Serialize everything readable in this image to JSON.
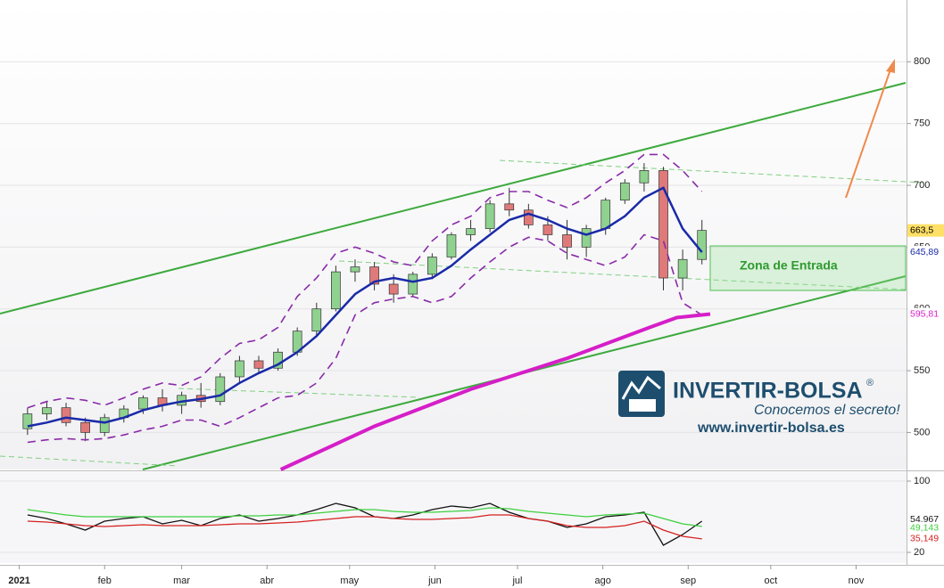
{
  "chart_data": [
    {
      "type": "candlestick",
      "x": [
        4,
        11,
        18,
        25,
        32,
        39,
        46,
        53,
        60,
        67,
        74,
        81,
        88,
        95,
        102,
        109,
        116,
        123,
        130,
        137,
        144,
        151,
        158,
        165,
        172,
        179,
        186,
        193,
        200,
        207,
        214,
        221,
        228,
        235,
        242,
        249
      ],
      "open": [
        503,
        515,
        520,
        508,
        500,
        512,
        519,
        528,
        522,
        530,
        525,
        545,
        558,
        552,
        565,
        582,
        600,
        630,
        634,
        620,
        612,
        628,
        642,
        660,
        665,
        685,
        680,
        668,
        660,
        650,
        665,
        688,
        702,
        712,
        625,
        640
      ],
      "high": [
        520,
        525,
        524,
        512,
        515,
        522,
        530,
        535,
        533,
        540,
        548,
        562,
        562,
        568,
        585,
        605,
        635,
        640,
        638,
        628,
        630,
        645,
        662,
        672,
        688,
        698,
        685,
        675,
        672,
        668,
        690,
        705,
        718,
        715,
        648,
        672
      ],
      "low": [
        498,
        510,
        505,
        493,
        497,
        508,
        515,
        517,
        515,
        520,
        522,
        540,
        548,
        550,
        562,
        578,
        598,
        622,
        615,
        605,
        610,
        624,
        640,
        655,
        662,
        675,
        665,
        655,
        640,
        642,
        660,
        685,
        695,
        615,
        615,
        636
      ],
      "close": [
        515,
        520,
        508,
        500,
        512,
        519,
        528,
        522,
        530,
        525,
        545,
        558,
        552,
        565,
        582,
        600,
        630,
        634,
        620,
        612,
        628,
        642,
        660,
        665,
        685,
        680,
        668,
        660,
        650,
        665,
        688,
        702,
        712,
        625,
        640,
        663.5
      ],
      "close_label": "663,5",
      "up_color": "#8fd18f",
      "down_color": "#e07a7a",
      "lines": [
        {
          "color": "#1a2aa8",
          "x": [
            4,
            11,
            18,
            25,
            32,
            39,
            46,
            53,
            60,
            67,
            74,
            81,
            88,
            95,
            102,
            109,
            116,
            123,
            130,
            137,
            144,
            151,
            158,
            165,
            172,
            179,
            186,
            193,
            200,
            207,
            214,
            221,
            228,
            235,
            242,
            249
          ],
          "values": [
            505,
            508,
            512,
            510,
            508,
            512,
            518,
            522,
            525,
            527,
            530,
            540,
            548,
            555,
            565,
            578,
            595,
            612,
            622,
            625,
            622,
            625,
            635,
            648,
            660,
            672,
            677,
            672,
            665,
            660,
            665,
            675,
            690,
            698,
            665,
            645.89
          ],
          "last_label": "645,89"
        },
        {
          "color": "#8a2aa8",
          "dashed": true,
          "x": [
            4,
            11,
            18,
            25,
            32,
            39,
            46,
            53,
            60,
            67,
            74,
            81,
            88,
            95,
            102,
            109,
            116,
            123,
            130,
            137,
            144,
            151,
            158,
            165,
            172,
            179,
            186,
            193,
            200,
            207,
            214,
            221,
            228,
            235,
            242,
            249
          ],
          "values": [
            520,
            525,
            528,
            526,
            522,
            528,
            535,
            540,
            538,
            545,
            560,
            572,
            575,
            585,
            610,
            625,
            645,
            650,
            645,
            638,
            635,
            655,
            668,
            675,
            690,
            695,
            695,
            688,
            682,
            690,
            702,
            712,
            725,
            725,
            712,
            695
          ]
        },
        {
          "color": "#8a2aa8",
          "dashed": true,
          "x": [
            4,
            11,
            18,
            25,
            32,
            39,
            46,
            53,
            60,
            67,
            74,
            81,
            88,
            95,
            102,
            109,
            116,
            123,
            130,
            137,
            144,
            151,
            158,
            165,
            172,
            179,
            186,
            193,
            200,
            207,
            214,
            221,
            228,
            235,
            242,
            249
          ],
          "values": [
            492,
            494,
            495,
            494,
            495,
            498,
            502,
            505,
            510,
            510,
            505,
            512,
            520,
            528,
            530,
            540,
            560,
            595,
            605,
            608,
            610,
            605,
            610,
            625,
            638,
            650,
            658,
            655,
            645,
            640,
            635,
            642,
            660,
            655,
            605,
            595
          ]
        },
        {
          "color": "#d61ec8",
          "width": 4,
          "x": [
            96,
            130,
            165,
            200,
            230,
            240,
            252
          ],
          "values": [
            470,
            505,
            535,
            560,
            585,
            593,
            595.81
          ],
          "last_label": "595,81"
        }
      ],
      "ylim": [
        470,
        850
      ],
      "yticks": [
        500,
        550,
        600,
        650,
        700,
        750,
        800
      ],
      "xlim": [
        -6,
        323
      ],
      "xticks": [
        {
          "value": 1,
          "label": "2021"
        },
        {
          "value": 32,
          "label": "feb"
        },
        {
          "value": 60,
          "label": "mar"
        },
        {
          "value": 91,
          "label": "abr"
        },
        {
          "value": 121,
          "label": "may"
        },
        {
          "value": 152,
          "label": "jun"
        },
        {
          "value": 182,
          "label": "jul"
        },
        {
          "value": 213,
          "label": "ago"
        },
        {
          "value": 244,
          "label": "sep"
        },
        {
          "value": 274,
          "label": "oct"
        },
        {
          "value": 305,
          "label": "nov"
        }
      ],
      "annotation": "Zona de Entrada",
      "watermark": {
        "brand": "INVERTIR-BOLSA",
        "mark": "®",
        "slogan": "Conocemos el secreto!",
        "url": "www.invertir-bolsa.es"
      }
    },
    {
      "type": "line",
      "x": [
        4,
        11,
        18,
        25,
        32,
        39,
        46,
        53,
        60,
        67,
        74,
        81,
        88,
        95,
        102,
        109,
        116,
        123,
        130,
        137,
        144,
        151,
        158,
        165,
        172,
        179,
        186,
        193,
        200,
        207,
        214,
        221,
        228,
        235,
        242,
        249
      ],
      "series": [
        {
          "color": "#111111",
          "values": [
            62,
            58,
            52,
            45,
            55,
            58,
            60,
            52,
            56,
            50,
            58,
            62,
            55,
            58,
            62,
            68,
            75,
            70,
            60,
            58,
            62,
            68,
            72,
            70,
            75,
            65,
            58,
            55,
            48,
            52,
            60,
            62,
            65,
            28,
            40,
            54.967
          ],
          "last_label": "54,967"
        },
        {
          "color": "#3ecf3e",
          "values": [
            68,
            65,
            62,
            60,
            60,
            60,
            60,
            60,
            60,
            60,
            60,
            61,
            61,
            62,
            62,
            64,
            66,
            68,
            68,
            66,
            65,
            65,
            66,
            67,
            70,
            69,
            66,
            64,
            62,
            60,
            62,
            63,
            64,
            58,
            52,
            49.143
          ],
          "last_label": "49,143"
        },
        {
          "color": "#d62020",
          "values": [
            55,
            54,
            52,
            50,
            49,
            50,
            51,
            50,
            50,
            50,
            51,
            52,
            52,
            53,
            54,
            56,
            58,
            60,
            60,
            58,
            57,
            57,
            58,
            59,
            62,
            62,
            58,
            55,
            50,
            48,
            48,
            50,
            55,
            45,
            38,
            35.149
          ],
          "last_label": "35,149"
        }
      ],
      "ylim": [
        8,
        110
      ],
      "yticks": [
        20,
        100
      ]
    }
  ]
}
